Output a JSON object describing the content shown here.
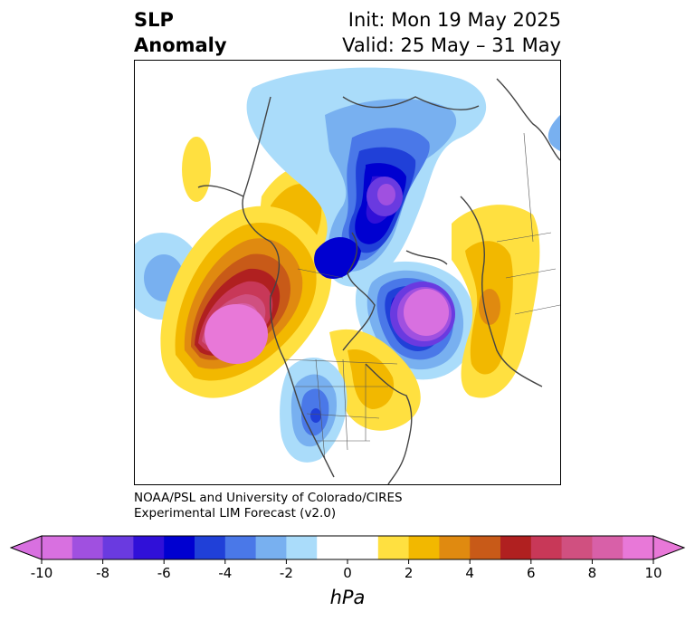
{
  "title": {
    "left_line1": "SLP",
    "left_line2": "Anomaly",
    "init": "Init: Mon 19 May 2025",
    "valid": "Valid: 25 May – 31 May"
  },
  "credit": {
    "line1": "NOAA/PSL and University of Colorado/CIRES",
    "line2": "Experimental LIM Forecast (v2.0)"
  },
  "colorbar": {
    "units": "hPa",
    "ticks": [
      "-10",
      "-8",
      "-6",
      "-4",
      "-2",
      "0",
      "2",
      "4",
      "6",
      "8",
      "10"
    ],
    "colors": [
      "#d870e0",
      "#a050e0",
      "#6a3ae0",
      "#3010d8",
      "#0000d0",
      "#2040d8",
      "#4a78e8",
      "#78b0f0",
      "#aadcfa",
      "#ffffff",
      "#ffffff",
      "#ffe040",
      "#f2b800",
      "#e08a10",
      "#c85a18",
      "#b02020",
      "#c83858",
      "#d05080",
      "#d860a8",
      "#e878d8"
    ]
  },
  "anomalies": [
    {
      "label": "arctic-low",
      "color_scale": [
        -2,
        -4,
        -6,
        -8
      ]
    },
    {
      "label": "north-atlantic-low",
      "color_scale": [
        -2,
        -4,
        -6,
        -8,
        -10
      ]
    },
    {
      "label": "northeast-pacific-high",
      "color_scale": [
        2,
        4,
        6,
        8,
        10
      ]
    },
    {
      "label": "central-us-low",
      "color_scale": [
        -2,
        -4,
        -6
      ]
    },
    {
      "label": "europe-high",
      "color_scale": [
        2,
        4,
        6
      ]
    }
  ]
}
